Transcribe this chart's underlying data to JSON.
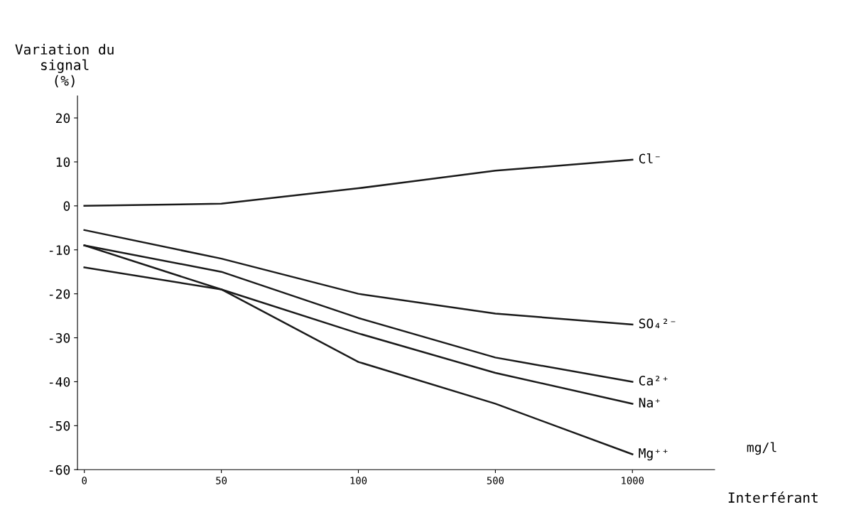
{
  "chart_data": {
    "type": "line",
    "ylabel": "Variation du\nsignal\n(%)",
    "xlabel": "Interférant",
    "annotations": [
      "mg/l"
    ],
    "categories": [
      "0",
      "50",
      "100",
      "500",
      "1000"
    ],
    "ylim": [
      -60,
      25
    ],
    "yticks": [
      -60,
      -50,
      -40,
      -30,
      -20,
      -10,
      0,
      10,
      20
    ],
    "grid": false,
    "legend": false,
    "marker": "none",
    "line_style": "solid",
    "series": [
      {
        "name": "Cl⁻",
        "color": "#1a1a1a",
        "values": [
          0,
          0.5,
          4,
          8,
          10.5
        ]
      },
      {
        "name": "SO₄²⁻",
        "color": "#1a1a1a",
        "values": [
          -5.5,
          -12,
          -20,
          -24.5,
          -27
        ]
      },
      {
        "name": "Ca²⁺",
        "color": "#1a1a1a",
        "values": [
          -9,
          -15,
          -25.5,
          -34.5,
          -40
        ]
      },
      {
        "name": "Na⁺",
        "color": "#1a1a1a",
        "values": [
          -9,
          -19,
          -29,
          -38,
          -45
        ]
      },
      {
        "name": "Mg⁺⁺",
        "color": "#1a1a1a",
        "values": [
          -14,
          -19,
          -35.5,
          -45,
          -56.5
        ]
      }
    ]
  }
}
